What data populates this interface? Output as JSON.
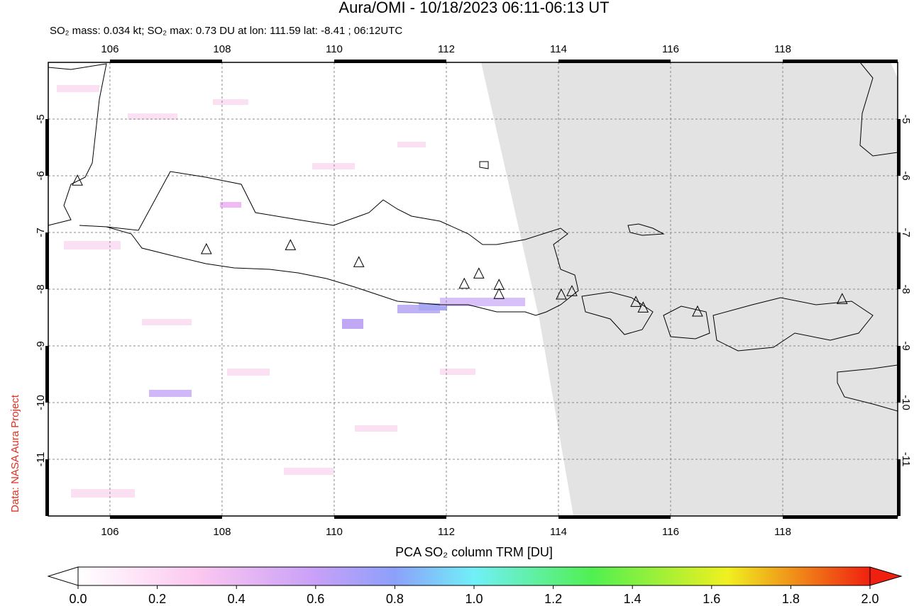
{
  "chart_data": {
    "type": "map",
    "title": "Aura/OMI - 10/18/2023 06:11-06:13 UT",
    "subtitle": "SO₂ mass: 0.034 kt; SO₂ max: 0.73 DU at lon: 111.59 lat: -8.41 ; 06:12UTC",
    "credit": "Data: NASA Aura Project",
    "xlim": [
      104.9,
      120.05
    ],
    "ylim": [
      -12,
      -4
    ],
    "xticks": [
      106,
      108,
      110,
      112,
      114,
      116,
      118
    ],
    "yticks": [
      -5,
      -6,
      -7,
      -8,
      -9,
      -10,
      -11
    ],
    "grid": true,
    "volcanoes": {
      "lon": [
        105.42,
        107.72,
        109.22,
        110.44,
        112.32,
        112.58,
        112.94,
        112.94,
        114.05,
        114.24,
        115.38,
        115.51,
        116.48,
        119.06
      ],
      "lat": [
        -6.09,
        -7.3,
        -7.23,
        -7.53,
        -7.91,
        -7.73,
        -7.93,
        -8.09,
        -8.1,
        -8.04,
        -8.23,
        -8.33,
        -8.4,
        -8.18
      ]
    },
    "colorbar": {
      "label": "PCA SO₂ column TRM [DU]",
      "range": [
        0,
        2
      ],
      "ticks": [
        {
          "value": 0,
          "label": "0.0"
        },
        {
          "value": 0.2,
          "label": "0.2"
        },
        {
          "value": 0.4,
          "label": "0.4"
        },
        {
          "value": 0.6,
          "label": "0.6"
        },
        {
          "value": 0.8,
          "label": "0.8"
        },
        {
          "value": 1,
          "label": "1.0"
        },
        {
          "value": 1.2,
          "label": "1.2"
        },
        {
          "value": 1.4,
          "label": "1.4"
        },
        {
          "value": 1.6,
          "label": "1.6"
        },
        {
          "value": 1.8,
          "label": "1.8"
        },
        {
          "value": 2,
          "label": "2.0"
        }
      ]
    }
  }
}
